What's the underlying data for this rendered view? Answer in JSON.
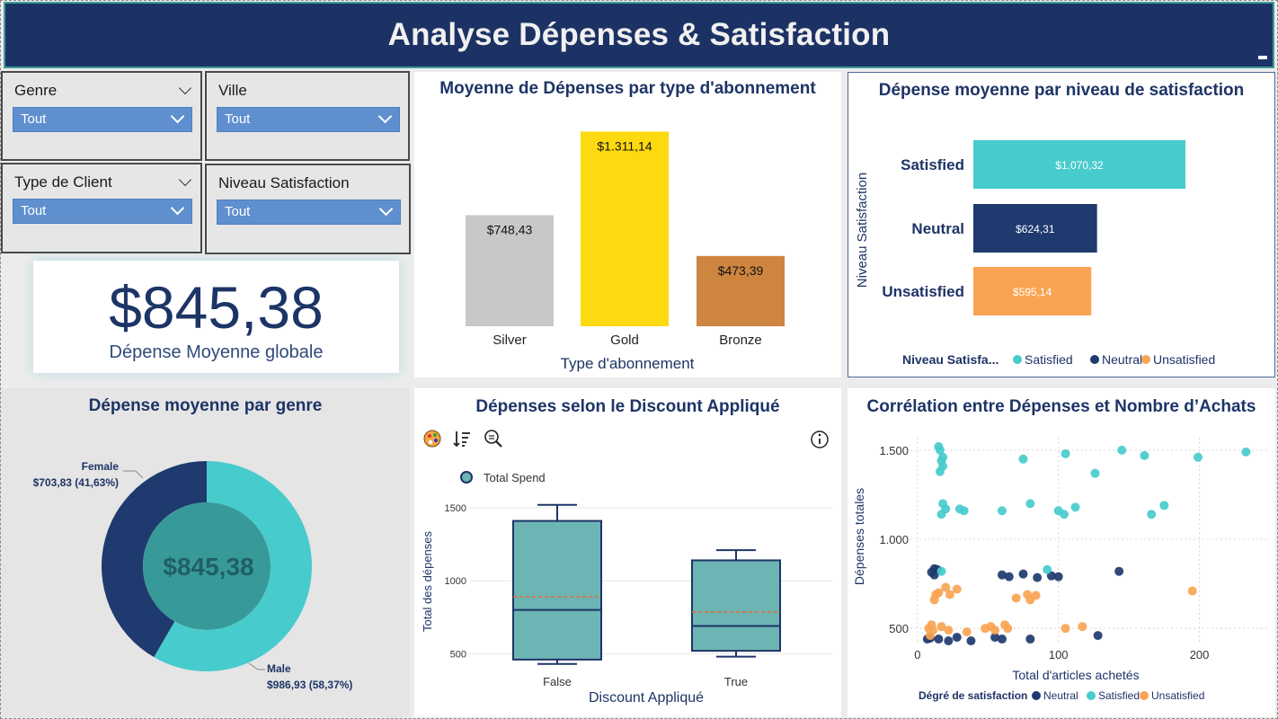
{
  "header": {
    "title": "Analyse Dépenses & Satisfaction"
  },
  "slicers": {
    "genre": {
      "label": "Genre",
      "value": "Tout"
    },
    "ville": {
      "label": "Ville",
      "value": "Tout"
    },
    "type_client": {
      "label": "Type de Client",
      "value": "Tout"
    },
    "niveau_satisfaction": {
      "label": "Niveau Satisfaction",
      "value": "Tout"
    }
  },
  "kpi": {
    "value": "$845,38",
    "label": "Dépense Moyenne globale"
  },
  "colors": {
    "navy": "#1f3a6e",
    "teal": "#48cbcd",
    "orange": "#f9a452",
    "silver": "#c8c8c8",
    "gold": "#fdd90f",
    "bronze": "#cd853f",
    "box": "#6db4b4"
  },
  "chart_data": [
    {
      "id": "subscription",
      "type": "bar",
      "title": "Moyenne de Dépenses par type d'abonnement",
      "xlabel": "Type d'abonnement",
      "categories": [
        "Silver",
        "Gold",
        "Bronze"
      ],
      "values": [
        748.43,
        1311.14,
        473.39
      ],
      "labels": [
        "$748,43",
        "$1.311,14",
        "$473,39"
      ],
      "colors": [
        "#c8c8c8",
        "#fdd90f",
        "#cd853f"
      ],
      "ylim": [
        0,
        1350
      ]
    },
    {
      "id": "satisfaction",
      "type": "bar",
      "orientation": "horizontal",
      "title": "Dépense moyenne par niveau de satisfaction",
      "ylabel": "Niveau Satisfaction",
      "categories": [
        "Satisfied",
        "Neutral",
        "Unsatisfied"
      ],
      "values": [
        1070.32,
        624.31,
        595.14
      ],
      "labels": [
        "$1.070,32",
        "$624,31",
        "$595,14"
      ],
      "colors": [
        "#48cbcd",
        "#1f3a6e",
        "#f9a452"
      ],
      "legend_title": "Niveau Satisfa...",
      "legend": [
        "Satisfied",
        "Neutral",
        "Unsatisfied"
      ],
      "xlim": [
        0,
        1100
      ]
    },
    {
      "id": "gender",
      "type": "pie",
      "title": "Dépense moyenne par genre",
      "center_label": "$845,38",
      "slices": [
        {
          "name": "Male",
          "value": 986.93,
          "share": "58,37%",
          "label": "$986,93 (58,37%)",
          "color": "#48cbcd"
        },
        {
          "name": "Female",
          "value": 703.83,
          "share": "41,63%",
          "label": "$703,83 (41,63%)",
          "color": "#1f3a6e"
        }
      ]
    },
    {
      "id": "discount",
      "type": "box",
      "title": "Dépenses selon le Discount Appliqué",
      "xlabel": "Discount Appliqué",
      "ylabel": "Total des dépenses",
      "legend": [
        "Total Spend"
      ],
      "yticks": [
        500,
        1000,
        1500
      ],
      "ylim": [
        410,
        1580
      ],
      "groups": [
        {
          "name": "False",
          "min": 430,
          "q1": 460,
          "median": 800,
          "mean": 890,
          "q3": 1410,
          "max": 1520
        },
        {
          "name": "True",
          "min": 480,
          "q1": 520,
          "median": 690,
          "mean": 785,
          "q3": 1140,
          "max": 1210
        }
      ]
    },
    {
      "id": "scatter",
      "type": "scatter",
      "title": "Corrélation entre Dépenses et Nombre d’Achats",
      "xlabel": "Total d'articles achetés",
      "ylabel": "Dépenses totales",
      "xticks": [
        0,
        100,
        200
      ],
      "yticks": [
        500,
        1000,
        1500
      ],
      "xlim": [
        -5,
        250
      ],
      "ylim": [
        410,
        1570
      ],
      "legend_title": "Dégré de satisfaction",
      "legend": [
        "Neutral",
        "Satisfied",
        "Unsatisfied"
      ],
      "series": [
        {
          "name": "Neutral",
          "color": "#1f3a6e",
          "points": [
            [
              7,
              440
            ],
            [
              9,
              445
            ],
            [
              12,
              800
            ],
            [
              14,
              830
            ],
            [
              10,
              815
            ],
            [
              15,
              440
            ],
            [
              22,
              430
            ],
            [
              28,
              450
            ],
            [
              38,
              430
            ],
            [
              55,
              450
            ],
            [
              60,
              800
            ],
            [
              65,
              790
            ],
            [
              75,
              805
            ],
            [
              85,
              785
            ],
            [
              95,
              795
            ],
            [
              100,
              790
            ],
            [
              128,
              460
            ],
            [
              80,
              440
            ],
            [
              143,
              820
            ],
            [
              60,
              440
            ],
            [
              12,
              835
            ]
          ]
        },
        {
          "name": "Satisfied",
          "color": "#48cbcd",
          "points": [
            [
              15,
              1520
            ],
            [
              16,
              1500
            ],
            [
              18,
              1460
            ],
            [
              17,
              1440
            ],
            [
              18,
              1410
            ],
            [
              16,
              1380
            ],
            [
              18,
              1200
            ],
            [
              20,
              1170
            ],
            [
              17,
              1140
            ],
            [
              30,
              1170
            ],
            [
              33,
              1160
            ],
            [
              60,
              1160
            ],
            [
              75,
              1450
            ],
            [
              80,
              1200
            ],
            [
              100,
              1160
            ],
            [
              104,
              1140
            ],
            [
              105,
              1480
            ],
            [
              112,
              1180
            ],
            [
              126,
              1370
            ],
            [
              145,
              1500
            ],
            [
              161,
              1470
            ],
            [
              166,
              1140
            ],
            [
              175,
              1190
            ],
            [
              199,
              1460
            ],
            [
              233,
              1490
            ],
            [
              17,
              820
            ],
            [
              92,
              830
            ]
          ]
        },
        {
          "name": "Unsatisfied",
          "color": "#f9a452",
          "points": [
            [
              8,
              500
            ],
            [
              10,
              520
            ],
            [
              12,
              660
            ],
            [
              13,
              690
            ],
            [
              15,
              700
            ],
            [
              17,
              510
            ],
            [
              22,
              490
            ],
            [
              23,
              690
            ],
            [
              28,
              720
            ],
            [
              20,
              730
            ],
            [
              35,
              480
            ],
            [
              48,
              500
            ],
            [
              52,
              510
            ],
            [
              55,
              490
            ],
            [
              62,
              520
            ],
            [
              64,
              500
            ],
            [
              70,
              670
            ],
            [
              78,
              690
            ],
            [
              80,
              660
            ],
            [
              84,
              685
            ],
            [
              105,
              500
            ],
            [
              117,
              510
            ],
            [
              195,
              710
            ],
            [
              11,
              490
            ],
            [
              9,
              460
            ]
          ]
        }
      ]
    }
  ],
  "toolbar": {
    "palette_icon": "palette-icon",
    "sort_icon": "sort-icon",
    "zoom_icon": "zoom-icon",
    "info_icon": "info-icon"
  }
}
